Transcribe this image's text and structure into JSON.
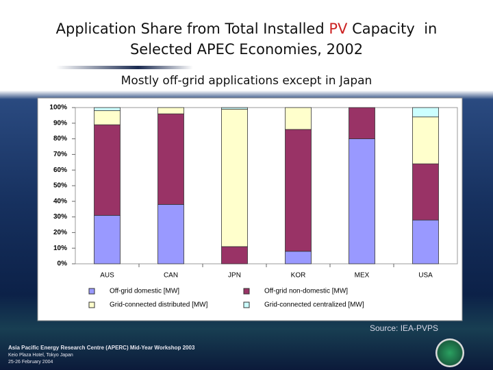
{
  "slide": {
    "title_parts": [
      "Application Share from Total Installed ",
      "PV",
      " Capacity  in",
      "Selected APEC Economies, 2002"
    ],
    "subtitle": "Mostly off-grid applications except in Japan",
    "source": "Source: IEA-PVPS",
    "footer": [
      "Asia Pacific Energy Research Centre (APERC) Mid-Year Workshop 2003",
      "Keio Plaza Hotel, Tokyo Japan",
      "25-26 February 2004"
    ]
  },
  "chart_data": {
    "type": "bar",
    "stacked": true,
    "categories": [
      "AUS",
      "CAN",
      "JPN",
      "KOR",
      "MEX",
      "USA"
    ],
    "series": [
      {
        "name": "Off-grid domestic [MW]",
        "color": "#9999ff",
        "values": [
          31,
          38,
          0,
          8,
          80,
          28
        ]
      },
      {
        "name": "Off-grid non-domestic [MW]",
        "color": "#993366",
        "values": [
          58,
          58,
          11,
          78,
          20,
          36
        ]
      },
      {
        "name": "Grid-connected distributed [MW]",
        "color": "#ffffcc",
        "values": [
          9,
          4,
          88,
          14,
          0,
          30
        ]
      },
      {
        "name": "Grid-connected centralized [MW]",
        "color": "#ccffff",
        "values": [
          2,
          0,
          1,
          0,
          0,
          6
        ]
      }
    ],
    "ylim": [
      0,
      100
    ],
    "yticks": [
      {
        "value": 0,
        "label": "0%"
      },
      {
        "value": 10,
        "label": "10%"
      },
      {
        "value": 20,
        "label": "20%"
      },
      {
        "value": 30,
        "label": "30%"
      },
      {
        "value": 40,
        "label": "40%"
      },
      {
        "value": 50,
        "label": "50%"
      },
      {
        "value": 60,
        "label": "60%"
      },
      {
        "value": 70,
        "label": "70%"
      },
      {
        "value": 80,
        "label": "80%"
      },
      {
        "value": 90,
        "label": "90%"
      },
      {
        "value": 100,
        "label": "100%"
      }
    ],
    "grid": false,
    "legend": "bottom"
  }
}
